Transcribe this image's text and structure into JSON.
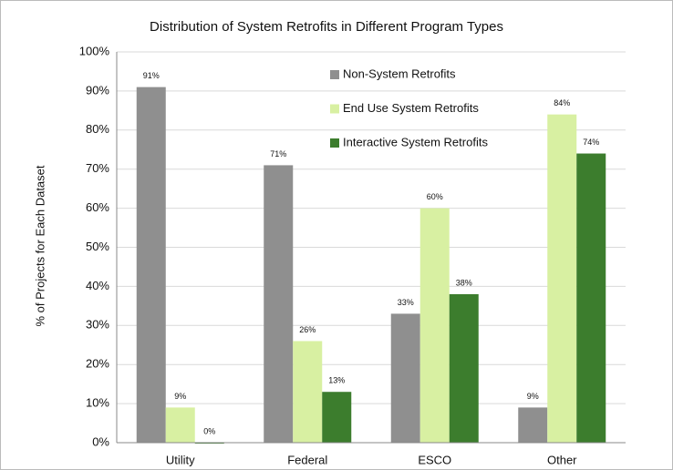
{
  "chart_data": {
    "type": "bar",
    "title": "Distribution of System Retrofits in Different Program Types",
    "y_axis_label": "% of Projects for Each Dataset",
    "categories": [
      "Utility",
      "Federal",
      "ESCO",
      "Other"
    ],
    "series": [
      {
        "name": "Non-System Retrofits",
        "color": "#8f8f8f",
        "values": [
          91,
          71,
          33,
          9
        ],
        "value_labels": [
          "91%",
          "71%",
          "33%",
          "9%"
        ]
      },
      {
        "name": "End Use System Retrofits",
        "color": "#d8f0a2",
        "values": [
          9,
          26,
          60,
          84
        ],
        "value_labels": [
          "9%",
          "26%",
          "60%",
          "84%"
        ]
      },
      {
        "name": "Interactive System Retrofits",
        "color": "#3c7d2d",
        "values": [
          0,
          13,
          38,
          74
        ],
        "value_labels": [
          "0%",
          "13%",
          "38%",
          "74%"
        ]
      }
    ],
    "ylim": [
      0,
      100
    ],
    "yticks": [
      {
        "value": 0,
        "label": "0%"
      },
      {
        "value": 10,
        "label": "10%"
      },
      {
        "value": 20,
        "label": "20%"
      },
      {
        "value": 30,
        "label": "30%"
      },
      {
        "value": 40,
        "label": "40%"
      },
      {
        "value": 50,
        "label": "50%"
      },
      {
        "value": 60,
        "label": "60%"
      },
      {
        "value": 70,
        "label": "70%"
      },
      {
        "value": 80,
        "label": "80%"
      },
      {
        "value": 90,
        "label": "90%"
      },
      {
        "value": 100,
        "label": "100%"
      }
    ],
    "grid": true,
    "legend": "top-center"
  }
}
